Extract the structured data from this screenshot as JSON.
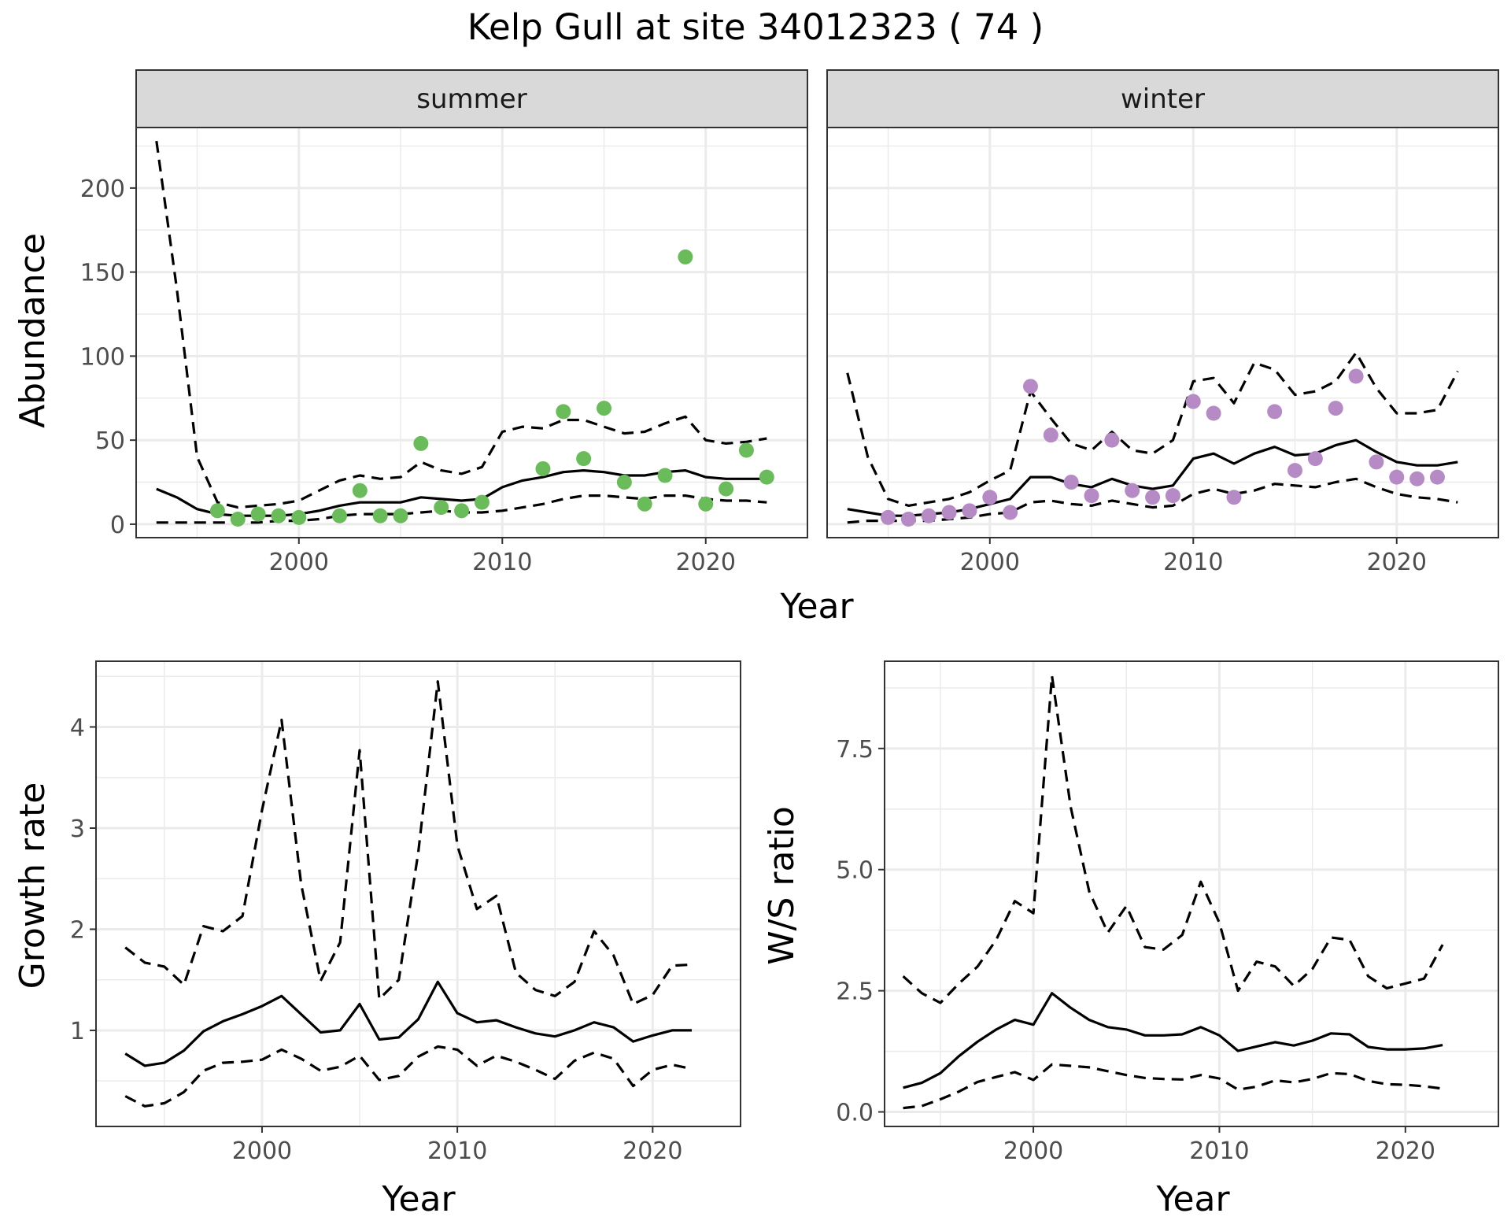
{
  "title": "Kelp Gull at site 34012323 ( 74 )",
  "chart_data": [
    {
      "type": "line+scatter",
      "panel": "summer",
      "xlabel": "Year",
      "ylabel": "Abundance",
      "xlim": [
        1992,
        2025
      ],
      "ylim": [
        -8,
        236
      ],
      "xticks": [
        2000,
        2010,
        2020
      ],
      "yticks": [
        0,
        50,
        100,
        150,
        200
      ],
      "point_color": "#6abb5a",
      "x": [
        1993,
        1994,
        1995,
        1996,
        1997,
        1998,
        1999,
        2000,
        2001,
        2002,
        2003,
        2004,
        2005,
        2006,
        2007,
        2008,
        2009,
        2010,
        2011,
        2012,
        2013,
        2014,
        2015,
        2016,
        2017,
        2018,
        2019,
        2020,
        2021,
        2022,
        2023
      ],
      "mean": [
        21,
        16,
        9,
        6,
        5,
        5,
        5,
        6,
        8,
        11,
        13,
        13,
        13,
        16,
        15,
        14,
        15,
        22,
        26,
        28,
        31,
        32,
        31,
        29,
        29,
        31,
        32,
        28,
        27,
        27,
        27
      ],
      "upper": [
        228,
        140,
        40,
        13,
        10,
        11,
        12,
        14,
        20,
        26,
        29,
        27,
        28,
        37,
        32,
        30,
        34,
        55,
        58,
        57,
        62,
        62,
        58,
        54,
        55,
        60,
        64,
        50,
        48,
        49,
        51
      ],
      "lower": [
        1,
        1,
        1,
        1,
        1,
        1,
        2,
        2,
        3,
        5,
        6,
        6,
        6,
        7,
        8,
        7,
        7,
        8,
        10,
        12,
        15,
        17,
        17,
        16,
        15,
        17,
        17,
        15,
        14,
        14,
        13
      ],
      "observed_x": [
        1996,
        1997,
        1998,
        1999,
        2000,
        2002,
        2003,
        2004,
        2005,
        2006,
        2007,
        2008,
        2009,
        2012,
        2013,
        2014,
        2015,
        2016,
        2017,
        2018,
        2019,
        2020,
        2021,
        2022,
        2023
      ],
      "observed_y": [
        8,
        3,
        6,
        5,
        4,
        5,
        20,
        5,
        5,
        48,
        10,
        8,
        13,
        33,
        67,
        39,
        69,
        25,
        12,
        29,
        159,
        12,
        21,
        44,
        28
      ]
    },
    {
      "type": "line+scatter",
      "panel": "winter",
      "xlabel": "Year",
      "ylabel": "Abundance",
      "xlim": [
        1992,
        2025
      ],
      "ylim": [
        -8,
        236
      ],
      "xticks": [
        2000,
        2010,
        2020
      ],
      "yticks": [
        0,
        50,
        100,
        150,
        200
      ],
      "point_color": "#b58ac5",
      "x": [
        1993,
        1994,
        1995,
        1996,
        1997,
        1998,
        1999,
        2000,
        2001,
        2002,
        2003,
        2004,
        2005,
        2006,
        2007,
        2008,
        2009,
        2010,
        2011,
        2012,
        2013,
        2014,
        2015,
        2016,
        2017,
        2018,
        2019,
        2020,
        2021,
        2022,
        2023
      ],
      "mean": [
        9,
        7,
        5,
        5,
        6,
        7,
        9,
        12,
        15,
        28,
        28,
        24,
        22,
        27,
        23,
        21,
        23,
        39,
        42,
        36,
        42,
        46,
        41,
        42,
        47,
        50,
        43,
        37,
        35,
        35,
        37
      ],
      "upper": [
        90,
        40,
        15,
        11,
        13,
        15,
        19,
        26,
        32,
        79,
        63,
        48,
        44,
        55,
        44,
        42,
        50,
        85,
        87,
        72,
        96,
        92,
        77,
        79,
        85,
        102,
        81,
        66,
        66,
        68,
        91
      ],
      "lower": [
        1,
        2,
        2,
        2,
        2,
        3,
        4,
        6,
        7,
        13,
        14,
        12,
        11,
        14,
        12,
        10,
        11,
        18,
        21,
        18,
        20,
        24,
        23,
        22,
        25,
        27,
        22,
        18,
        16,
        15,
        13
      ],
      "observed_x": [
        1995,
        1996,
        1997,
        1998,
        1999,
        2000,
        2001,
        2002,
        2003,
        2004,
        2005,
        2006,
        2007,
        2008,
        2009,
        2010,
        2011,
        2012,
        2014,
        2015,
        2016,
        2017,
        2018,
        2019,
        2020,
        2021,
        2022
      ],
      "observed_y": [
        4,
        3,
        5,
        7,
        8,
        16,
        7,
        82,
        53,
        25,
        17,
        50,
        20,
        16,
        17,
        73,
        66,
        16,
        67,
        32,
        39,
        69,
        88,
        37,
        28,
        27,
        28
      ]
    },
    {
      "type": "line",
      "panel": "growth",
      "xlabel": "Year",
      "ylabel": "Growth rate",
      "xlim": [
        1991.5,
        2024.5
      ],
      "ylim": [
        0.05,
        4.65
      ],
      "xticks": [
        2000,
        2010,
        2020
      ],
      "yticks": [
        1,
        2,
        3,
        4
      ],
      "x": [
        1993,
        1994,
        1995,
        1996,
        1997,
        1998,
        1999,
        2000,
        2001,
        2002,
        2003,
        2004,
        2005,
        2006,
        2007,
        2008,
        2009,
        2010,
        2011,
        2012,
        2013,
        2014,
        2015,
        2016,
        2017,
        2018,
        2019,
        2020,
        2021,
        2022
      ],
      "mean": [
        0.77,
        0.65,
        0.68,
        0.8,
        0.99,
        1.09,
        1.16,
        1.24,
        1.34,
        1.16,
        0.98,
        1.0,
        1.26,
        0.91,
        0.93,
        1.11,
        1.48,
        1.17,
        1.08,
        1.1,
        1.03,
        0.97,
        0.94,
        1.0,
        1.08,
        1.03,
        0.89,
        0.95,
        1.0,
        1.0
      ],
      "upper": [
        1.82,
        1.67,
        1.63,
        1.45,
        2.03,
        1.98,
        2.13,
        3.18,
        4.07,
        2.45,
        1.49,
        1.87,
        3.77,
        1.31,
        1.5,
        2.76,
        4.45,
        2.83,
        2.2,
        2.33,
        1.57,
        1.4,
        1.34,
        1.48,
        1.98,
        1.74,
        1.26,
        1.35,
        1.64,
        1.65
      ],
      "lower": [
        0.35,
        0.25,
        0.28,
        0.39,
        0.6,
        0.68,
        0.69,
        0.71,
        0.81,
        0.72,
        0.6,
        0.64,
        0.75,
        0.51,
        0.55,
        0.74,
        0.84,
        0.81,
        0.65,
        0.75,
        0.69,
        0.61,
        0.52,
        0.7,
        0.78,
        0.72,
        0.45,
        0.61,
        0.66,
        0.62
      ]
    },
    {
      "type": "line",
      "panel": "ratio",
      "xlabel": "Year",
      "ylabel": "W/S ratio",
      "xlim": [
        1992,
        2025
      ],
      "ylim": [
        -0.3,
        9.3
      ],
      "xticks": [
        2000,
        2010,
        2020
      ],
      "yticks": [
        0.0,
        2.5,
        5.0,
        7.5
      ],
      "ytick_labels": [
        "0.0",
        "2.5",
        "5.0",
        "7.5"
      ],
      "x": [
        1993,
        1994,
        1995,
        1996,
        1997,
        1998,
        1999,
        2000,
        2001,
        2002,
        2003,
        2004,
        2005,
        2006,
        2007,
        2008,
        2009,
        2010,
        2011,
        2012,
        2013,
        2014,
        2015,
        2016,
        2017,
        2018,
        2019,
        2020,
        2021,
        2022
      ],
      "mean": [
        0.5,
        0.6,
        0.8,
        1.15,
        1.45,
        1.7,
        1.9,
        1.8,
        2.45,
        2.15,
        1.9,
        1.75,
        1.7,
        1.58,
        1.58,
        1.6,
        1.75,
        1.58,
        1.26,
        1.35,
        1.44,
        1.37,
        1.47,
        1.62,
        1.6,
        1.34,
        1.29,
        1.29,
        1.31,
        1.38
      ],
      "upper": [
        2.8,
        2.45,
        2.25,
        2.65,
        3.0,
        3.55,
        4.35,
        4.1,
        9.0,
        6.3,
        4.55,
        3.7,
        4.25,
        3.4,
        3.35,
        3.65,
        4.75,
        3.9,
        2.5,
        3.1,
        3.0,
        2.6,
        2.95,
        3.6,
        3.55,
        2.8,
        2.55,
        2.65,
        2.75,
        3.45
      ],
      "lower": [
        0.08,
        0.12,
        0.26,
        0.42,
        0.62,
        0.72,
        0.82,
        0.66,
        0.98,
        0.95,
        0.92,
        0.84,
        0.76,
        0.7,
        0.68,
        0.67,
        0.76,
        0.69,
        0.46,
        0.52,
        0.65,
        0.61,
        0.68,
        0.8,
        0.78,
        0.64,
        0.57,
        0.56,
        0.53,
        0.48
      ]
    }
  ]
}
